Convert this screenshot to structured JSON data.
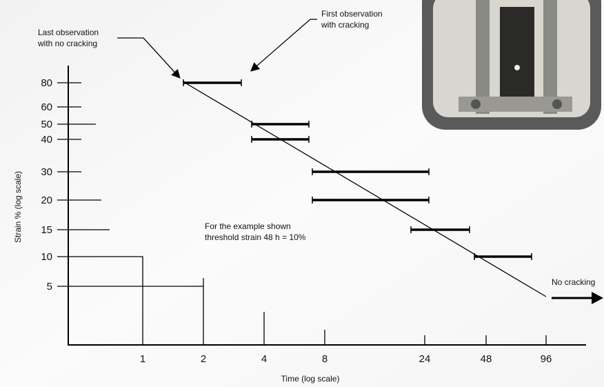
{
  "diagram": {
    "y_axis_title": "Strain % (log scale)",
    "x_axis_title": "Time (log scale)",
    "y_ticks": [
      "80",
      "60",
      "50",
      "40",
      "30",
      "20",
      "15",
      "10",
      "5"
    ],
    "x_ticks": [
      "1",
      "2",
      "4",
      "8",
      "24",
      "48",
      "96"
    ],
    "annotations": {
      "last_no_cracking": [
        "Last observation",
        "with no cracking"
      ],
      "first_cracking": [
        "First observation",
        "with cracking"
      ],
      "example": [
        "For the example shown",
        "threshold strain 48 h = 10%"
      ],
      "no_cracking": "No cracking"
    }
  }
}
